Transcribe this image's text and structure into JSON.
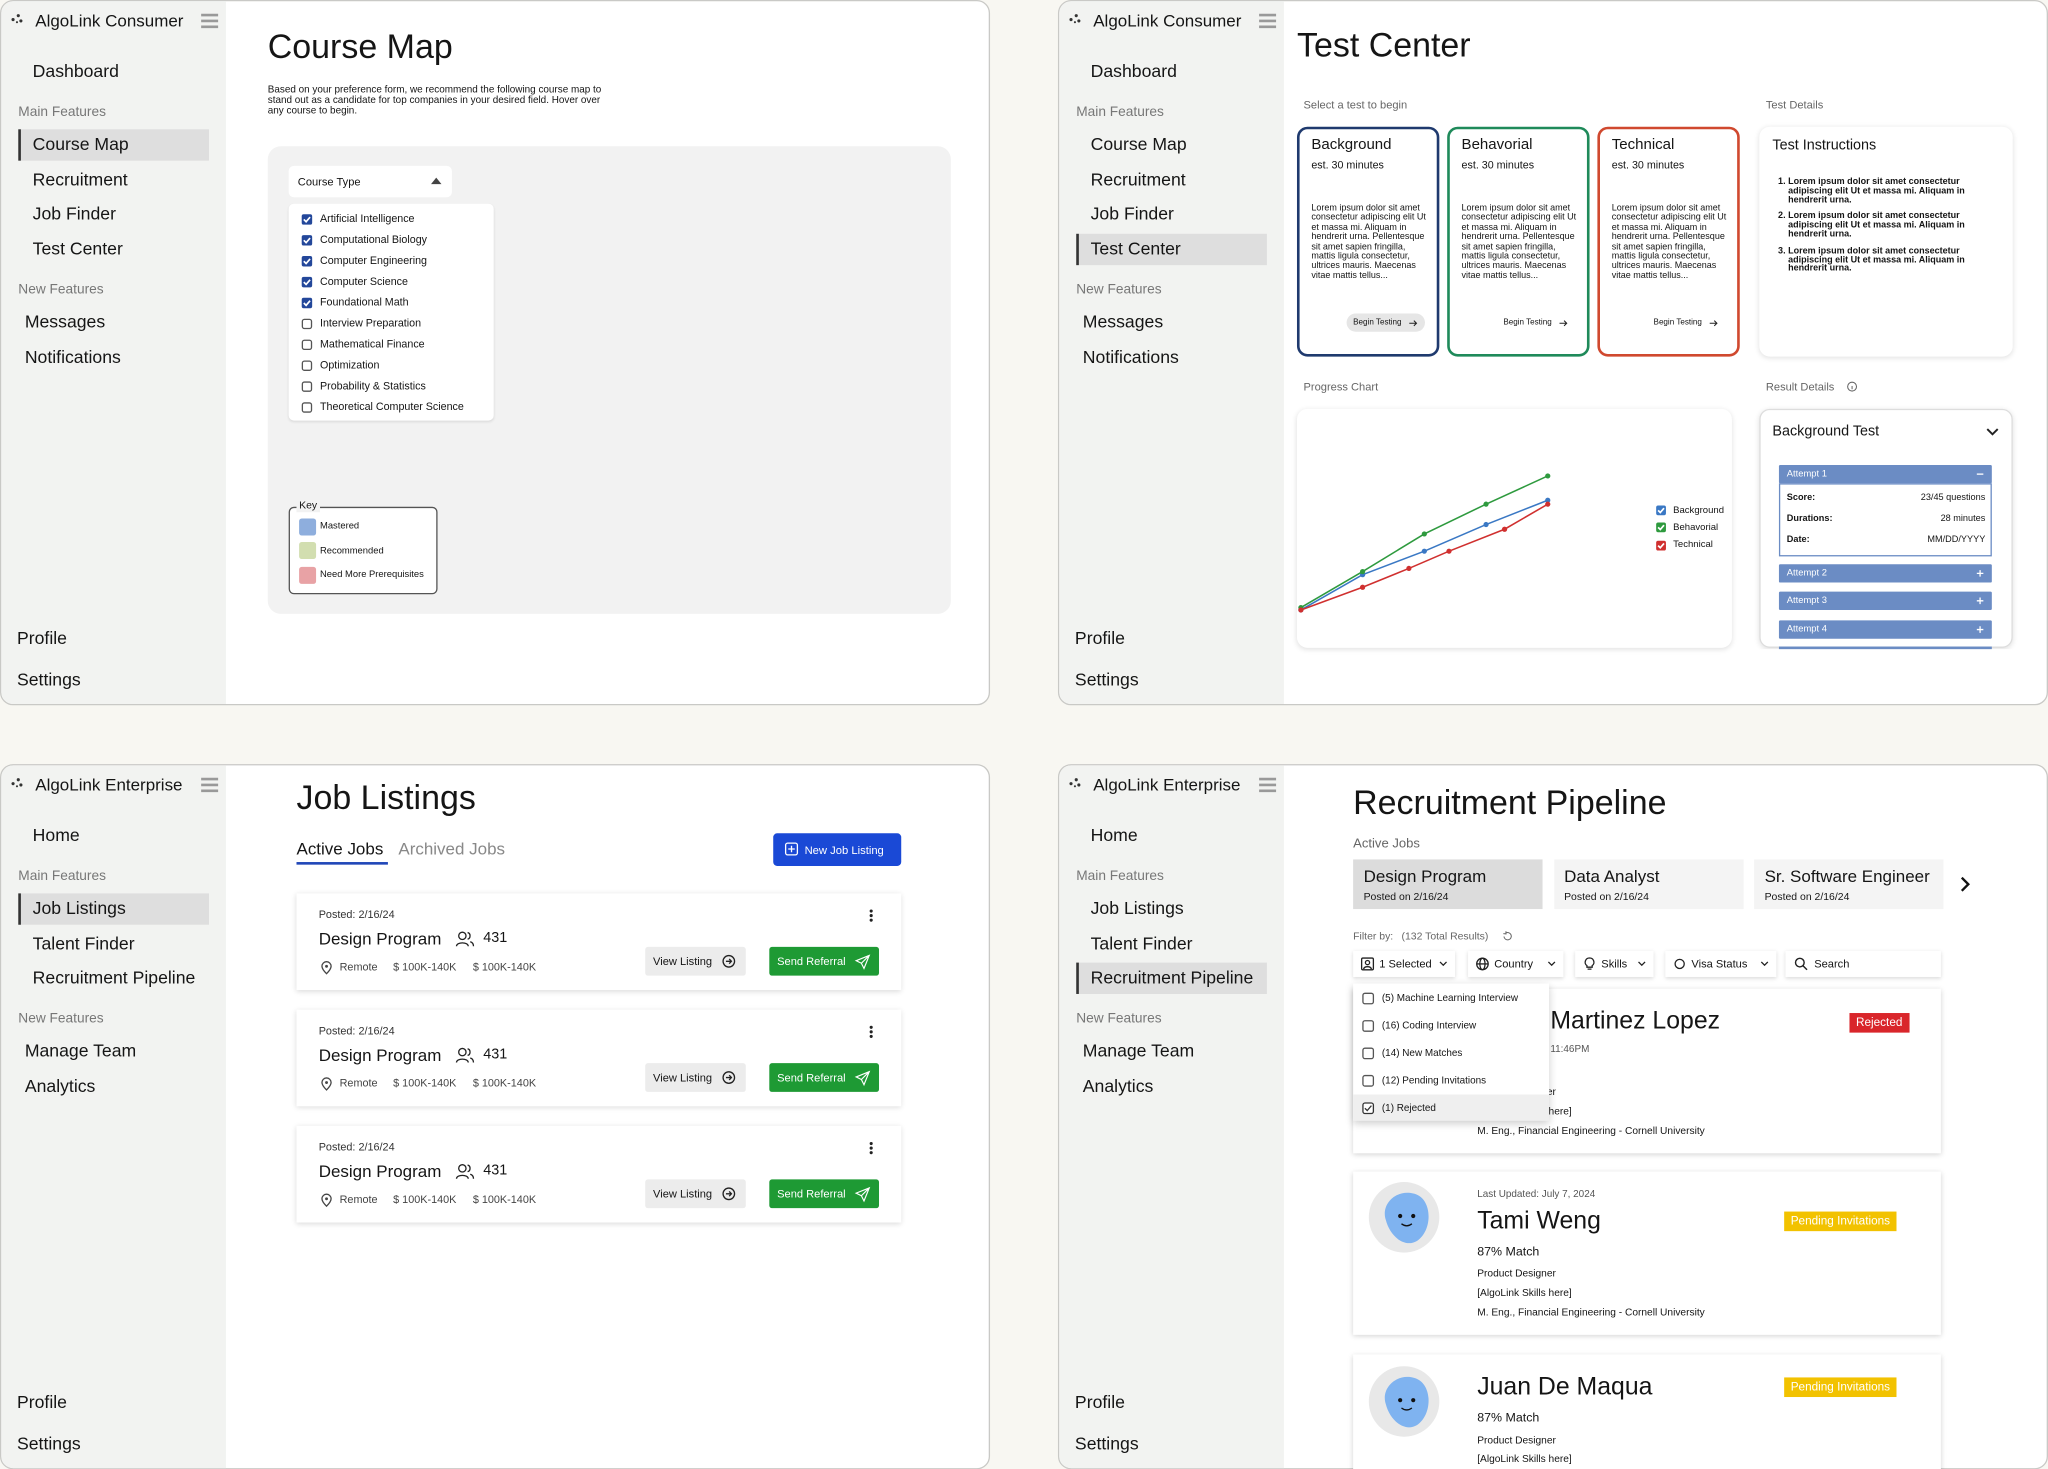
{
  "sidebars": [
    {
      "brand": "AlgoLink Consumer",
      "home": "Dashboard",
      "sections": [
        {
          "heading": "Main Features",
          "items": [
            "Course Map",
            "Recruitment",
            "Job Finder",
            "Test Center"
          ]
        },
        {
          "heading": "New Features",
          "items": [
            "Messages",
            "Notifications"
          ]
        }
      ],
      "footer": [
        "Profile",
        "Settings"
      ]
    },
    {
      "brand": "AlgoLink Consumer",
      "home": "Dashboard",
      "sections": [
        {
          "heading": "Main Features",
          "items": [
            "Course Map",
            "Recruitment",
            "Job Finder",
            "Test Center"
          ]
        },
        {
          "heading": "New Features",
          "items": [
            "Messages",
            "Notifications"
          ]
        }
      ],
      "footer": [
        "Profile",
        "Settings"
      ]
    },
    {
      "brand": "AlgoLink Enterprise",
      "home": "Home",
      "sections": [
        {
          "heading": "Main Features",
          "items": [
            "Job Listings",
            "Talent Finder",
            "Recruitment Pipeline"
          ]
        },
        {
          "heading": "New Features",
          "items": [
            "Manage Team",
            "Analytics"
          ]
        }
      ],
      "footer": [
        "Profile",
        "Settings"
      ]
    },
    {
      "brand": "AlgoLink Enterprise",
      "home": "Home",
      "sections": [
        {
          "heading": "Main Features",
          "items": [
            "Job Listings",
            "Talent Finder",
            "Recruitment Pipeline"
          ]
        },
        {
          "heading": "New Features",
          "items": [
            "Manage Team",
            "Analytics"
          ]
        }
      ],
      "footer": [
        "Profile",
        "Settings"
      ]
    }
  ],
  "course_map": {
    "title": "Course Map",
    "intro": "Based on your preference form, we recommend the following course map to stand out as a candidate for top companies in your desired field. Hover over any course to begin.",
    "filter_label": "Course Type",
    "courses": [
      {
        "name": "Artificial Intelligence",
        "checked": true
      },
      {
        "name": "Computational Biology",
        "checked": true
      },
      {
        "name": "Computer Engineering",
        "checked": true
      },
      {
        "name": "Computer Science",
        "checked": true
      },
      {
        "name": "Foundational Math",
        "checked": true
      },
      {
        "name": "Interview Preparation",
        "checked": false
      },
      {
        "name": "Mathematical Finance",
        "checked": false
      },
      {
        "name": "Optimization",
        "checked": false
      },
      {
        "name": "Probability & Statistics",
        "checked": false
      },
      {
        "name": "Theoretical Computer Science",
        "checked": false
      }
    ],
    "key_title": "Key",
    "key": [
      {
        "label": "Mastered",
        "color": "#8eaedd"
      },
      {
        "label": "Recommended",
        "color": "#d2deb0"
      },
      {
        "label": "Need More Prerequisites",
        "color": "#e8a2a5"
      }
    ]
  },
  "test_center": {
    "title": "Test Center",
    "select_label": "Select a test to begin",
    "tests": [
      {
        "name": "Background",
        "duration": "est. 30 minutes",
        "description": "Lorem ipsum dolor sit amet consectetur adipiscing elit Ut et massa mi. Aliquam in hendrerit urna. Pellentesque sit amet sapien fringilla, mattis ligula consectetur, ultrices mauris. Maecenas vitae mattis tellus...",
        "button": "Begin Testing",
        "color": "#1f3a6e"
      },
      {
        "name": "Behavorial",
        "duration": "est. 30 minutes",
        "description": "Lorem ipsum dolor sit amet consectetur adipiscing elit Ut et massa mi. Aliquam in hendrerit urna. Pellentesque sit amet sapien fringilla, mattis ligula consectetur, ultrices mauris. Maecenas vitae mattis tellus...",
        "button": "Begin Testing",
        "color": "#1f8a5a"
      },
      {
        "name": "Technical",
        "duration": "est. 30 minutes",
        "description": "Lorem ipsum dolor sit amet consectetur adipiscing elit Ut et massa mi. Aliquam in hendrerit urna. Pellentesque sit amet sapien fringilla, mattis ligula consectetur, ultrices mauris. Maecenas vitae mattis tellus...",
        "button": "Begin Testing",
        "color": "#d0492f"
      }
    ],
    "details_label": "Test Details",
    "instructions_title": "Test Instructions",
    "instructions": [
      "Lorem ipsum dolor sit amet consectetur adipiscing elit Ut et massa mi. Aliquam in hendrerit urna.",
      "Lorem ipsum dolor sit amet consectetur adipiscing elit Ut et massa mi. Aliquam in hendrerit urna.",
      "Lorem ipsum dolor sit amet consectetur adipiscing elit Ut et massa mi. Aliquam in hendrerit urna."
    ],
    "progress_label": "Progress Chart",
    "chart_data": {
      "type": "line",
      "xlim": [
        0,
        4
      ],
      "ylim": [
        0,
        100
      ],
      "series": [
        {
          "name": "Background",
          "color": "#3a78c4",
          "x": [
            0,
            1,
            2,
            3,
            4
          ],
          "values": [
            2.5,
            25,
            40,
            57,
            72.5
          ]
        },
        {
          "name": "Behavorial",
          "color": "#2e9a3e",
          "x": [
            0,
            1,
            2,
            3,
            4
          ],
          "values": [
            4,
            27,
            51,
            70,
            88
          ]
        },
        {
          "name": "Technical",
          "color": "#d0302f",
          "x": [
            0,
            1,
            1.75,
            2.4,
            3.3,
            4
          ],
          "values": [
            2.5,
            17,
            29,
            40,
            54,
            70
          ]
        }
      ]
    },
    "result_label": "Result Details",
    "result_test": "Background Test",
    "attempts": [
      {
        "label": "Attempt 1",
        "rows": [
          {
            "key": "Score:",
            "value": "23/45 questions"
          },
          {
            "key": "Durations:",
            "value": "28 minutes"
          },
          {
            "key": "Date:",
            "value": "MM/DD/YYYY"
          }
        ]
      },
      {
        "label": "Attempt 2"
      },
      {
        "label": "Attempt 3"
      },
      {
        "label": "Attempt 4"
      }
    ]
  },
  "job_listings": {
    "title": "Job Listings",
    "tabs": [
      "Active Jobs",
      "Archived Jobs"
    ],
    "new_button": "New Job Listing",
    "jobs": [
      {
        "posted": "Posted: 2/16/24",
        "title": "Design Program",
        "applicants": 431,
        "location": "Remote",
        "salary": [
          "$ 100K-140K",
          "$ 100K-140K"
        ],
        "view": "View Listing",
        "refer": "Send Referral"
      },
      {
        "posted": "Posted: 2/16/24",
        "title": "Design Program",
        "applicants": 431,
        "location": "Remote",
        "salary": [
          "$ 100K-140K",
          "$ 100K-140K"
        ],
        "view": "View Listing",
        "refer": "Send Referral"
      },
      {
        "posted": "Posted: 2/16/24",
        "title": "Design Program",
        "applicants": 431,
        "location": "Remote",
        "salary": [
          "$ 100K-140K",
          "$ 100K-140K"
        ],
        "view": "View Listing",
        "refer": "Send Referral"
      }
    ]
  },
  "recruitment_pipeline": {
    "title": "Recruitment Pipeline",
    "active_label": "Active Jobs",
    "jobs": [
      {
        "title": "Design Program",
        "posted": "Posted on 2/16/24"
      },
      {
        "title": "Data Analyst",
        "posted": "Posted on 2/16/24"
      },
      {
        "title": "Sr. Software Engineer",
        "posted": "Posted on 2/16/24"
      }
    ],
    "filter_label": "Filter by:",
    "total": "(132 Total Results)",
    "filters": [
      "1 Selected",
      "Country",
      "Skills",
      "Visa Status"
    ],
    "search": "Search",
    "stages": [
      {
        "label": "(5) Machine Learning Interview",
        "checked": false
      },
      {
        "label": "(16) Coding Interview",
        "checked": false
      },
      {
        "label": "(14) New Matches",
        "checked": false
      },
      {
        "label": "(12) Pending Invitations",
        "checked": false
      },
      {
        "label": "(1) Rejected",
        "checked": true
      }
    ],
    "candidates": [
      {
        "name": "Martinez Lopez",
        "status": "Rejected",
        "status_color": "#d9262b",
        "updated": "11:46PM",
        "role": "Product Designer",
        "skills": "[AlgoLink Skills here]",
        "education": "M. Eng., Financial Engineering - Cornell University"
      },
      {
        "name": "Tami Weng",
        "status": "Pending Invitations",
        "status_color": "#f2c200",
        "updated": "Last Updated: July 7, 2024",
        "match": "87% Match",
        "role": "Product Designer",
        "skills": "[AlgoLink Skills here]",
        "education": "M. Eng., Financial Engineering - Cornell University"
      },
      {
        "name": "Juan De Maqua",
        "status": "Pending Invitations",
        "status_color": "#f2c200",
        "match": "87% Match",
        "role": "Product Designer",
        "skills": "[AlgoLink Skills here]"
      }
    ]
  }
}
